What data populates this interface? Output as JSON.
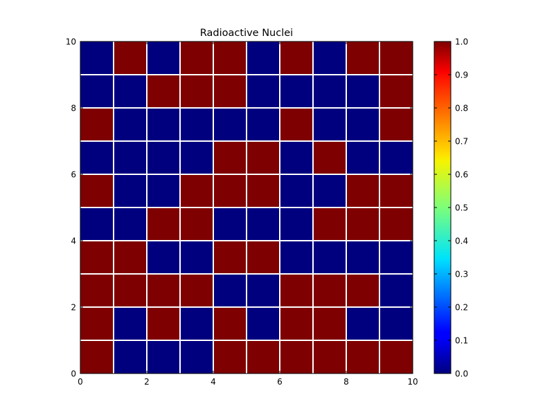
{
  "chart_data": {
    "type": "heatmap",
    "title": "Radioactive Nuclei",
    "xlabel": "",
    "ylabel": "",
    "xlim": [
      0,
      10
    ],
    "ylim": [
      0,
      10
    ],
    "x_ticks": [
      "0",
      "2",
      "4",
      "6",
      "8",
      "10"
    ],
    "y_ticks": [
      "0",
      "2",
      "4",
      "6",
      "8",
      "10"
    ],
    "colormap": "jet",
    "clim": [
      0.0,
      1.0
    ],
    "colorbar_ticks": [
      "0.0",
      "0.1",
      "0.2",
      "0.3",
      "0.4",
      "0.5",
      "0.6",
      "0.7",
      "0.8",
      "0.9",
      "1.0"
    ],
    "grid_line_color": "#ffffff",
    "colors": {
      "low": "#00007f",
      "high": "#7f0000"
    },
    "rows_top_to_bottom": [
      [
        0,
        1,
        0,
        1,
        1,
        0,
        1,
        0,
        1,
        1
      ],
      [
        0,
        0,
        1,
        1,
        1,
        0,
        0,
        0,
        0,
        1
      ],
      [
        1,
        0,
        0,
        0,
        0,
        0,
        1,
        0,
        0,
        1
      ],
      [
        0,
        0,
        0,
        0,
        1,
        1,
        0,
        1,
        0,
        0
      ],
      [
        1,
        0,
        0,
        1,
        1,
        1,
        0,
        0,
        1,
        1
      ],
      [
        0,
        0,
        1,
        1,
        0,
        0,
        0,
        1,
        1,
        1
      ],
      [
        1,
        1,
        0,
        0,
        1,
        1,
        0,
        0,
        0,
        0
      ],
      [
        1,
        1,
        1,
        1,
        0,
        0,
        1,
        1,
        1,
        0
      ],
      [
        1,
        0,
        1,
        0,
        1,
        0,
        1,
        1,
        0,
        0
      ],
      [
        1,
        0,
        0,
        0,
        1,
        1,
        1,
        1,
        1,
        1
      ]
    ]
  }
}
